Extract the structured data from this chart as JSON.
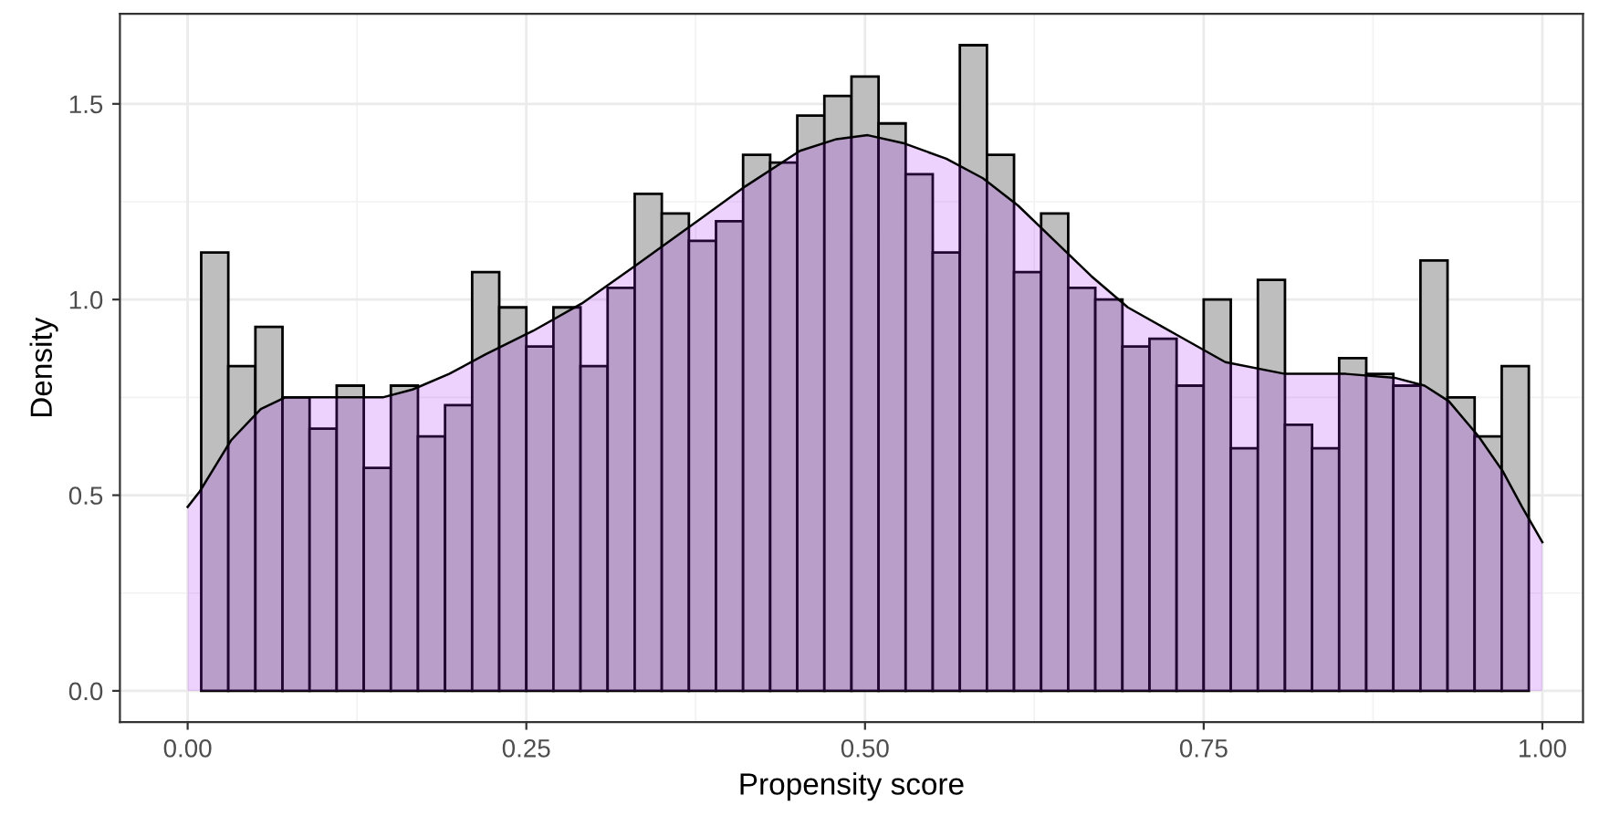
{
  "chart_data": {
    "type": "histogram",
    "xlabel": "Propensity score",
    "ylabel": "Density",
    "bins": [
      0.01,
      0.03,
      0.05,
      0.07,
      0.09,
      0.11,
      0.13,
      0.15,
      0.17,
      0.19,
      0.21,
      0.23,
      0.25,
      0.27,
      0.29,
      0.31,
      0.33,
      0.35,
      0.37,
      0.39,
      0.41,
      0.43,
      0.45,
      0.47,
      0.49,
      0.51,
      0.53,
      0.55,
      0.57,
      0.59,
      0.61,
      0.63,
      0.65,
      0.67,
      0.69,
      0.71,
      0.73,
      0.75,
      0.77,
      0.79,
      0.81,
      0.83,
      0.85,
      0.87,
      0.89,
      0.91,
      0.93,
      0.95,
      0.97,
      0.99
    ],
    "series": [
      {
        "type": "histogram",
        "color": "#bebebe",
        "values": [
          1.12,
          0.83,
          0.93,
          0.75,
          0.67,
          0.78,
          0.57,
          0.78,
          0.65,
          0.73,
          1.07,
          0.98,
          0.88,
          0.98,
          0.83,
          1.03,
          1.27,
          1.22,
          1.15,
          1.2,
          1.37,
          1.35,
          1.47,
          1.52,
          1.57,
          1.45,
          1.32,
          1.12,
          1.65,
          1.37,
          1.07,
          1.22,
          1.03,
          1.0,
          0.88,
          0.9,
          0.78,
          1.0,
          0.62,
          1.05,
          0.68,
          0.62,
          0.85,
          0.81,
          0.78,
          1.1,
          0.75,
          0.65,
          0.83
        ]
      },
      {
        "type": "area",
        "color": "#a020f0",
        "x": [
          0.0,
          0.009,
          0.032,
          0.054,
          0.072,
          0.099,
          0.144,
          0.166,
          0.193,
          0.22,
          0.255,
          0.291,
          0.332,
          0.372,
          0.412,
          0.452,
          0.479,
          0.502,
          0.528,
          0.56,
          0.587,
          0.613,
          0.64,
          0.667,
          0.694,
          0.73,
          0.766,
          0.81,
          0.855,
          0.891,
          0.913,
          0.931,
          0.953,
          0.971,
          0.985,
          1.0
        ],
        "values": [
          0.47,
          0.51,
          0.64,
          0.72,
          0.75,
          0.75,
          0.75,
          0.77,
          0.81,
          0.86,
          0.92,
          0.99,
          1.09,
          1.19,
          1.29,
          1.38,
          1.41,
          1.42,
          1.4,
          1.36,
          1.31,
          1.24,
          1.15,
          1.06,
          0.98,
          0.91,
          0.84,
          0.81,
          0.81,
          0.8,
          0.78,
          0.74,
          0.65,
          0.56,
          0.47,
          0.38
        ]
      }
    ],
    "xlim": [
      -0.05,
      1.03
    ],
    "ylim": [
      -0.08,
      1.73
    ],
    "xticks": [
      {
        "value": 0,
        "label": "0.00"
      },
      {
        "value": 0.25,
        "label": "0.25"
      },
      {
        "value": 0.5,
        "label": "0.50"
      },
      {
        "value": 0.75,
        "label": "0.75"
      },
      {
        "value": 1,
        "label": "1.00"
      }
    ],
    "yticks": [
      {
        "value": 0,
        "label": "0.0"
      },
      {
        "value": 0.5,
        "label": "0.5"
      },
      {
        "value": 1,
        "label": "1.0"
      },
      {
        "value": 1.5,
        "label": "1.5"
      }
    ],
    "grid": true
  }
}
